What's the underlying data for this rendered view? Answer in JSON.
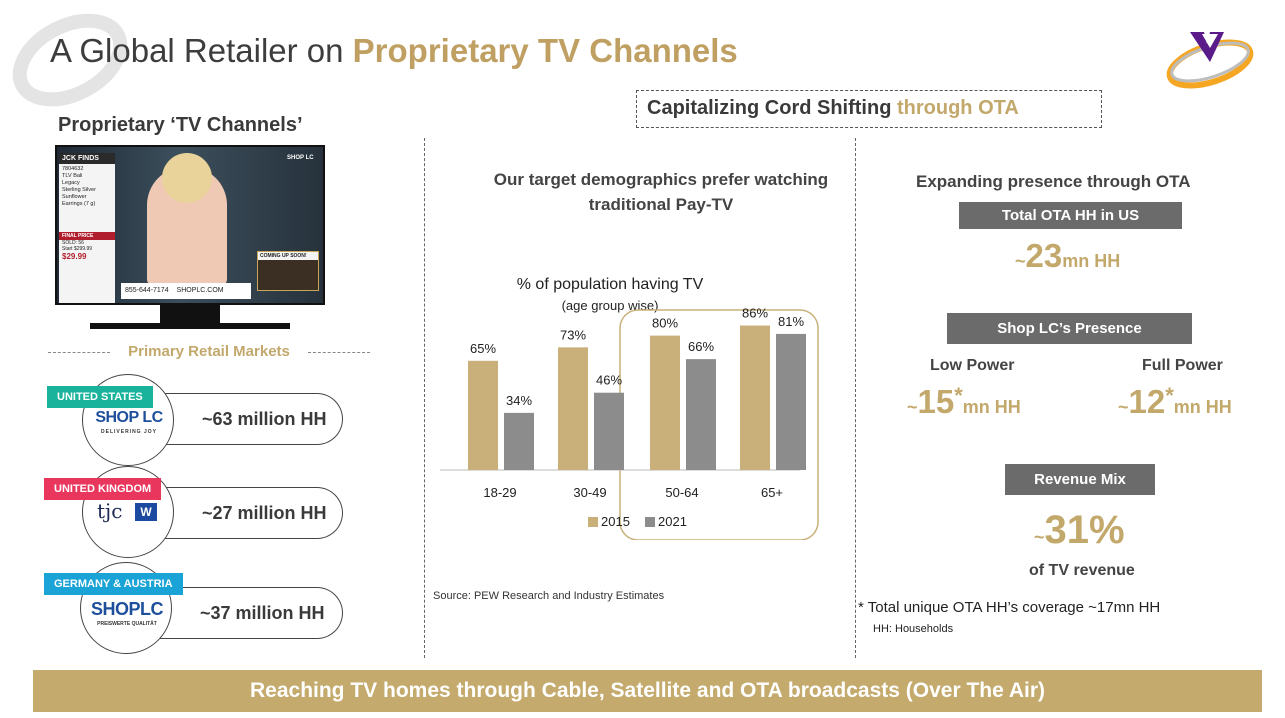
{
  "header": {
    "title_plain": "A Global Retailer on ",
    "title_highlight": "Proprietary TV Channels"
  },
  "left": {
    "heading": "Proprietary ‘TV Channels’",
    "tv_screen": {
      "brand_box": "JCK FINDS",
      "item_lines": [
        "7804632",
        "TLV Bali",
        "Legacy",
        "Sterling Silver",
        "Sunflower",
        "Earrings (7 g)"
      ],
      "price_label": "FINAL PRICE",
      "sold": "SOLD: 56",
      "start": "Start $299.99",
      "price": "$29.99",
      "phone": "855-644-7174",
      "site": "SHOPLC.COM",
      "coming_up": "COMING UP SOON!",
      "channel_bug": "SHOP LC"
    },
    "markets_label": "Primary Retail Markets",
    "markets": [
      {
        "tag": "UNITED STATES",
        "logo_main": "SHOP LC",
        "logo_sub": "DELIVERING JOY",
        "households": "~63 million HH",
        "tag_color": "#19b39b"
      },
      {
        "tag": "UNITED KINGDOM",
        "logo_main": "tjc",
        "logo_sub": "",
        "households": "~27 million HH",
        "tag_color": "#e8365d"
      },
      {
        "tag": "GERMANY & AUSTRIA",
        "logo_main": "SHOPLC",
        "logo_sub": "PREISWERTE QUALITÄT",
        "households": "~37 million HH",
        "tag_color": "#1aa3d6"
      }
    ]
  },
  "middle": {
    "ota_box_plain": "Capitalizing Cord Shifting ",
    "ota_box_highlight": "through OTA",
    "subheading": "Our target demographics prefer watching traditional Pay-TV",
    "source": "Source: PEW Research and Industry Estimates"
  },
  "chart_data": {
    "type": "bar",
    "title": "% of population having TV",
    "subtitle": "(age group wise)",
    "categories": [
      "18-29",
      "30-49",
      "50-64",
      "65+"
    ],
    "series": [
      {
        "name": "2015",
        "values": [
          65,
          73,
          80,
          86
        ],
        "color": "#c9b07a"
      },
      {
        "name": "2021",
        "values": [
          34,
          46,
          66,
          81
        ],
        "color": "#8c8c8c"
      }
    ],
    "value_suffix": "%",
    "ylim": [
      0,
      100
    ],
    "highlighted_categories": [
      "50-64",
      "65+"
    ],
    "legend": "bottom"
  },
  "right": {
    "heading": "Expanding presence through OTA",
    "total_label": "Total OTA HH in US",
    "total_prefix": "~",
    "total_value": "23",
    "total_unit": "mn HH",
    "presence_label": "Shop LC’s Presence",
    "low_power_label": "Low Power",
    "low_power_prefix": "~",
    "low_power_value": "15",
    "low_power_star": "*",
    "low_power_unit": "mn HH",
    "full_power_label": "Full Power",
    "full_power_prefix": "~",
    "full_power_value": "12",
    "full_power_star": "*",
    "full_power_unit": "mn HH",
    "revenue_label": "Revenue Mix",
    "revenue_prefix": "~",
    "revenue_value": "31%",
    "revenue_caption": "of TV revenue",
    "footnote": "* Total unique OTA HH’s coverage ~17mn HH",
    "footnote_hh": "HH: Households"
  },
  "footer": {
    "text": "Reaching TV homes through Cable, Satellite and OTA broadcasts (Over The Air)"
  },
  "colors": {
    "gold": "#c3a86c",
    "dark_label": "#6b6b6b",
    "footer_bg": "#c4aa6c"
  }
}
